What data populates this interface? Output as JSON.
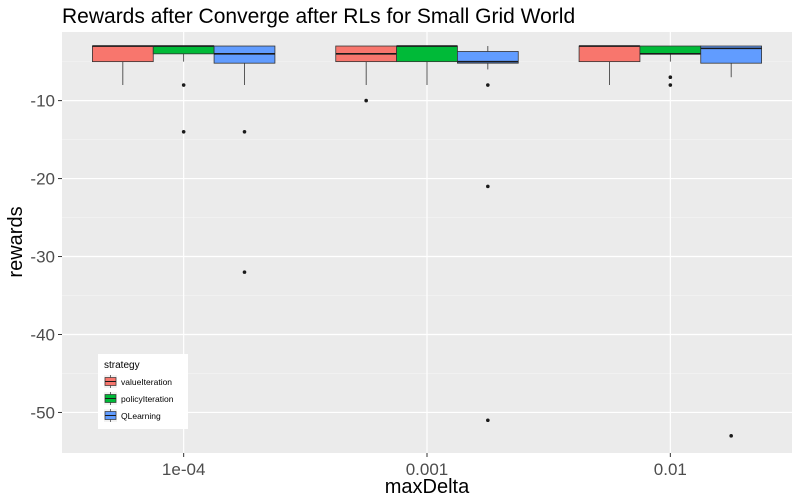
{
  "chart_data": {
    "type": "boxplot",
    "title": "Rewards after Converge after RLs for Small Grid World",
    "xlabel": "maxDelta",
    "ylabel": "rewards",
    "categories": [
      "1e-04",
      "0.001",
      "0.01"
    ],
    "ylim": [
      -55.2,
      -1.2
    ],
    "yticks": [
      -10,
      -20,
      -30,
      -40,
      -50
    ],
    "grid": true,
    "legend": {
      "title": "strategy",
      "position": "bottom-left"
    },
    "series": [
      {
        "name": "valueIteration",
        "color": "#F8766D",
        "boxes": [
          {
            "min": -8,
            "q1": -5,
            "median": -3,
            "q3": -3,
            "max": -3,
            "outliers": []
          },
          {
            "min": -8,
            "q1": -5,
            "median": -4,
            "q3": -3,
            "max": -3,
            "outliers": [
              -10
            ]
          },
          {
            "min": -8,
            "q1": -5,
            "median": -3,
            "q3": -3,
            "max": -3,
            "outliers": []
          }
        ]
      },
      {
        "name": "policyIteration",
        "color": "#00BA38",
        "boxes": [
          {
            "min": -5,
            "q1": -4,
            "median": -3,
            "q3": -3,
            "max": -3,
            "outliers": [
              -8,
              -14
            ]
          },
          {
            "min": -8,
            "q1": -5,
            "median": -3,
            "q3": -3,
            "max": -3,
            "outliers": []
          },
          {
            "min": -5,
            "q1": -4,
            "median": -4,
            "q3": -3,
            "max": -3,
            "outliers": [
              -7,
              -8
            ]
          }
        ]
      },
      {
        "name": "QLearning",
        "color": "#619CFF",
        "boxes": [
          {
            "min": -8,
            "q1": -5.2,
            "median": -4,
            "q3": -3,
            "max": -3,
            "outliers": [
              -14,
              -32
            ]
          },
          {
            "min": -6,
            "q1": -5.2,
            "median": -5,
            "q3": -3.7,
            "max": -3,
            "outliers": [
              -8,
              -21,
              -51
            ]
          },
          {
            "min": -7,
            "q1": -5.2,
            "median": -3.3,
            "q3": -3,
            "max": -3,
            "outliers": [
              -53
            ]
          }
        ]
      }
    ]
  }
}
